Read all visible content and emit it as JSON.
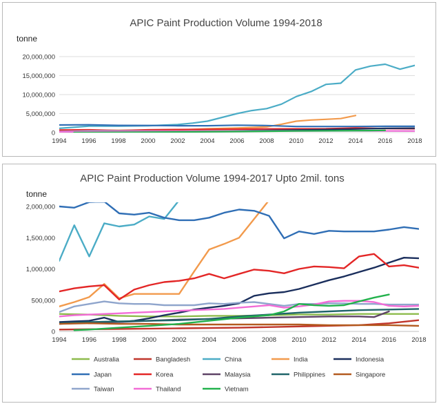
{
  "colors": {
    "Australia": "#8dbb4c",
    "Bangladesh": "#c0352b",
    "China": "#4bacc6",
    "India": "#f29a4c",
    "Indonesia": "#1a2e5c",
    "Japan": "#2f6eb5",
    "Korea": "#e32626",
    "Malaysia": "#5e4366",
    "Philippines": "#1f6469",
    "Singapore": "#b35a1f",
    "Taiwan": "#8fa5cc",
    "Thailand": "#f26cd6",
    "Vietnam": "#22b14c"
  },
  "chart_data": [
    {
      "type": "line",
      "title": "APIC Paint Production Volume 1994-2018",
      "ylabel": "tonne",
      "xlabel": "",
      "xlim": [
        1994,
        2018
      ],
      "ylim": [
        0,
        20000000
      ],
      "xticks": [
        "1994",
        "1996",
        "1998",
        "2000",
        "2002",
        "2004",
        "2006",
        "2008",
        "2010",
        "2012",
        "2014",
        "2016",
        "2018"
      ],
      "yticks": [
        "0",
        "5,000,000",
        "10,000,000",
        "15,000,000",
        "20,000,000"
      ],
      "grid": true,
      "series": [
        {
          "name": "China",
          "x": [
            1994,
            1996,
            1998,
            2000,
            2002,
            2003,
            2004,
            2005,
            2006,
            2007,
            2008,
            2009,
            2010,
            2011,
            2012,
            2013,
            2014,
            2015,
            2016,
            2017,
            2018
          ],
          "values": [
            1100000,
            1700000,
            1700000,
            1800000,
            2100000,
            2500000,
            3000000,
            4000000,
            5000000,
            5800000,
            6300000,
            7500000,
            9500000,
            10800000,
            12700000,
            13000000,
            16500000,
            17500000,
            18000000,
            16700000,
            17700000
          ]
        },
        {
          "name": "India",
          "x": [
            1994,
            1996,
            1998,
            2000,
            2002,
            2004,
            2006,
            2008,
            2009,
            2010,
            2011,
            2012,
            2013,
            2014
          ],
          "values": [
            400000,
            550000,
            600000,
            600000,
            700000,
            1000000,
            1200000,
            1500000,
            2200000,
            3000000,
            3300000,
            3500000,
            3700000,
            4500000
          ]
        },
        {
          "name": "Japan",
          "x": [
            1994,
            1996,
            1998,
            2000,
            2002,
            2004,
            2006,
            2008,
            2010,
            2012,
            2014,
            2016,
            2018
          ],
          "values": [
            2000000,
            2050000,
            1900000,
            1880000,
            1800000,
            1800000,
            1950000,
            1850000,
            1600000,
            1600000,
            1600000,
            1650000,
            1650000
          ]
        },
        {
          "name": "Korea",
          "x": [
            1994,
            1996,
            1998,
            2000,
            2002,
            2004,
            2006,
            2008,
            2010,
            2012,
            2014,
            2016,
            2018
          ],
          "values": [
            650000,
            720000,
            520000,
            720000,
            800000,
            850000,
            900000,
            960000,
            990000,
            1000000,
            1200000,
            1050000,
            1020000
          ]
        },
        {
          "name": "Indonesia",
          "x": [
            1994,
            1998,
            2002,
            2006,
            2008,
            2010,
            2012,
            2014,
            2016,
            2018
          ],
          "values": [
            150000,
            200000,
            300000,
            450000,
            600000,
            700000,
            800000,
            950000,
            1100000,
            1170000
          ]
        },
        {
          "name": "Taiwan",
          "x": [
            1994,
            1996,
            1998,
            2002,
            2006,
            2010,
            2014,
            2018
          ],
          "values": [
            300000,
            450000,
            450000,
            400000,
            450000,
            450000,
            450000,
            420000
          ]
        },
        {
          "name": "Thailand",
          "x": [
            1994,
            1996,
            1998,
            2002,
            2006,
            2010,
            2014,
            2018
          ],
          "values": [
            200000,
            250000,
            300000,
            320000,
            380000,
            420000,
            480000,
            400000
          ]
        },
        {
          "name": "Vietnam",
          "x": [
            1995,
            2000,
            2005,
            2010,
            2015,
            2016
          ],
          "values": [
            20000,
            100000,
            250000,
            420000,
            520000,
            590000
          ]
        }
      ]
    },
    {
      "type": "line",
      "title": "APIC Paint Production Volume 1994-2017  Upto 2mil. tons",
      "ylabel": "tonne",
      "xlabel": "",
      "xlim": [
        1994,
        2018
      ],
      "ylim": [
        0,
        2000000
      ],
      "xticks": [
        "1994",
        "1996",
        "1998",
        "2000",
        "2002",
        "2004",
        "2006",
        "2008",
        "2010",
        "2012",
        "2014",
        "2016",
        "2018"
      ],
      "yticks": [
        "0",
        "500,000",
        "1,000,000",
        "1,500,000",
        "2,000,000"
      ],
      "grid": false,
      "legend": [
        "Australia",
        "Bangladesh",
        "China",
        "India",
        "Indonesia",
        "Japan",
        "Korea",
        "Malaysia",
        "Philippines",
        "Singapore",
        "Taiwan",
        "Thailand",
        "Vietnam"
      ],
      "series": [
        {
          "name": "Australia",
          "x": [
            1994,
            1996,
            1998,
            2000,
            2002,
            2004,
            2006,
            2008,
            2010,
            2012,
            2014,
            2016,
            2018
          ],
          "values": [
            280000,
            270000,
            250000,
            240000,
            240000,
            250000,
            250000,
            260000,
            270000,
            270000,
            280000,
            280000,
            280000
          ]
        },
        {
          "name": "Bangladesh",
          "x": [
            1994,
            1998,
            2002,
            2006,
            2010,
            2014,
            2016,
            2018
          ],
          "values": [
            30000,
            40000,
            50000,
            60000,
            80000,
            100000,
            130000,
            180000
          ]
        },
        {
          "name": "China",
          "x": [
            1994,
            1995,
            1996,
            1997,
            1998,
            1999,
            2000,
            2001,
            2002
          ],
          "values": [
            1130000,
            1700000,
            1200000,
            1730000,
            1680000,
            1710000,
            1840000,
            1800000,
            2100000
          ]
        },
        {
          "name": "India",
          "x": [
            1994,
            1995,
            1996,
            1997,
            1998,
            1999,
            2000,
            2001,
            2002,
            2003,
            2004,
            2005,
            2006,
            2007,
            2008
          ],
          "values": [
            400000,
            470000,
            550000,
            760000,
            530000,
            600000,
            600000,
            600000,
            600000,
            960000,
            1310000,
            1400000,
            1500000,
            1800000,
            2100000
          ]
        },
        {
          "name": "Indonesia",
          "x": [
            1994,
            1995,
            1996,
            1997,
            1998,
            1999,
            2000,
            2001,
            2002,
            2003,
            2004,
            2005,
            2006,
            2007,
            2008,
            2009,
            2010,
            2011,
            2012,
            2013,
            2014,
            2015,
            2016,
            2017,
            2018
          ],
          "values": [
            150000,
            160000,
            170000,
            220000,
            150000,
            170000,
            210000,
            260000,
            300000,
            350000,
            380000,
            410000,
            450000,
            570000,
            610000,
            630000,
            680000,
            750000,
            820000,
            880000,
            950000,
            1020000,
            1100000,
            1180000,
            1170000
          ]
        },
        {
          "name": "Japan",
          "x": [
            1994,
            1995,
            1996,
            1997,
            1998,
            1999,
            2000,
            2001,
            2002,
            2003,
            2004,
            2005,
            2006,
            2007,
            2008,
            2009,
            2010,
            2011,
            2012,
            2013,
            2014,
            2015,
            2016,
            2017,
            2018
          ],
          "values": [
            2000000,
            1980000,
            2070000,
            2080000,
            1890000,
            1870000,
            1900000,
            1820000,
            1780000,
            1780000,
            1820000,
            1900000,
            1950000,
            1930000,
            1850000,
            1490000,
            1600000,
            1560000,
            1610000,
            1600000,
            1600000,
            1600000,
            1630000,
            1670000,
            1640000
          ]
        },
        {
          "name": "Korea",
          "x": [
            1994,
            1995,
            1996,
            1997,
            1998,
            1999,
            2000,
            2001,
            2002,
            2003,
            2004,
            2005,
            2006,
            2007,
            2008,
            2009,
            2010,
            2011,
            2012,
            2013,
            2014,
            2015,
            2016,
            2017,
            2018
          ],
          "values": [
            640000,
            690000,
            720000,
            740000,
            510000,
            670000,
            740000,
            790000,
            810000,
            850000,
            920000,
            850000,
            920000,
            990000,
            970000,
            930000,
            1000000,
            1040000,
            1030000,
            1010000,
            1200000,
            1240000,
            1040000,
            1060000,
            1020000
          ]
        },
        {
          "name": "Malaysia",
          "x": [
            1994,
            1996,
            1998,
            2000,
            2002,
            2004,
            2006,
            2008,
            2010,
            2012,
            2014,
            2015,
            2016
          ],
          "values": [
            120000,
            140000,
            150000,
            170000,
            190000,
            200000,
            210000,
            220000,
            230000,
            240000,
            240000,
            230000,
            320000
          ]
        },
        {
          "name": "Philippines",
          "x": [
            1994,
            1996,
            1998,
            2000,
            2002,
            2004,
            2006,
            2008,
            2010,
            2012,
            2014,
            2016,
            2018
          ],
          "values": [
            130000,
            150000,
            160000,
            170000,
            180000,
            200000,
            240000,
            270000,
            300000,
            320000,
            340000,
            350000,
            360000
          ]
        },
        {
          "name": "Singapore",
          "x": [
            1994,
            1996,
            1998,
            2000,
            2002,
            2004,
            2006,
            2008,
            2010,
            2012,
            2014,
            2016,
            2018
          ],
          "values": [
            120000,
            130000,
            120000,
            120000,
            110000,
            110000,
            110000,
            110000,
            110000,
            100000,
            100000,
            100000,
            90000
          ]
        },
        {
          "name": "Taiwan",
          "x": [
            1994,
            1995,
            1996,
            1997,
            1998,
            1999,
            2000,
            2001,
            2002,
            2003,
            2004,
            2005,
            2006,
            2007,
            2008,
            2009,
            2010,
            2011,
            2012,
            2013,
            2014,
            2015,
            2016,
            2017,
            2018
          ],
          "values": [
            310000,
            400000,
            440000,
            480000,
            450000,
            440000,
            440000,
            420000,
            420000,
            420000,
            450000,
            440000,
            460000,
            470000,
            440000,
            410000,
            440000,
            440000,
            450000,
            450000,
            440000,
            440000,
            430000,
            430000,
            430000
          ]
        },
        {
          "name": "Thailand",
          "x": [
            1994,
            1995,
            1996,
            1997,
            1998,
            1999,
            2000,
            2001,
            2002,
            2003,
            2004,
            2005,
            2006,
            2007,
            2008,
            2009,
            2010,
            2011,
            2012,
            2013,
            2014,
            2015,
            2016,
            2017,
            2018
          ],
          "values": [
            240000,
            260000,
            270000,
            280000,
            290000,
            300000,
            310000,
            320000,
            330000,
            340000,
            350000,
            360000,
            380000,
            400000,
            420000,
            380000,
            400000,
            430000,
            480000,
            490000,
            490000,
            470000,
            410000,
            400000,
            410000
          ]
        },
        {
          "name": "Vietnam",
          "x": [
            1995,
            1996,
            1998,
            2000,
            2002,
            2004,
            2006,
            2008,
            2009,
            2010,
            2011,
            2012,
            2013,
            2014,
            2015,
            2016
          ],
          "values": [
            20000,
            30000,
            60000,
            90000,
            120000,
            170000,
            220000,
            260000,
            320000,
            440000,
            420000,
            410000,
            420000,
            480000,
            540000,
            590000
          ]
        }
      ]
    }
  ]
}
